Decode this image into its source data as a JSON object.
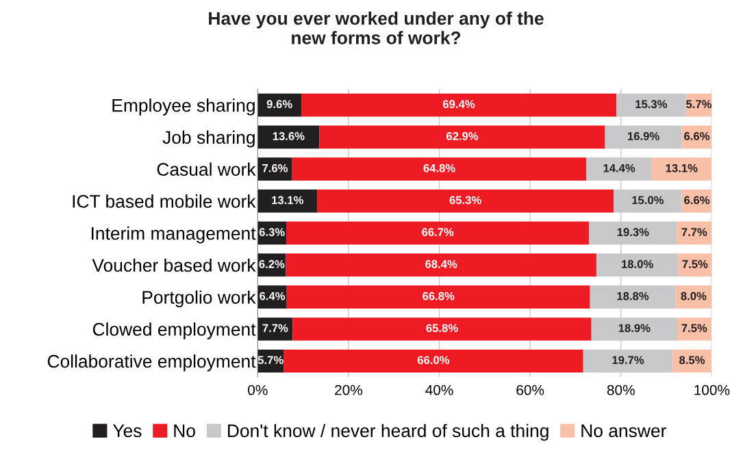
{
  "chart_data": {
    "type": "bar",
    "orientation": "horizontal",
    "stacked": true,
    "title": "Have you ever worked under any of the\nnew forms of work?",
    "categories": [
      "Employee sharing",
      "Job sharing",
      "Casual work",
      "ICT based mobile work",
      "Interim management",
      "Voucher based work",
      "Portgolio work",
      "Clowed employment",
      "Collaborative employment"
    ],
    "series": [
      {
        "name": "Yes",
        "color": "#231f20",
        "values": [
          9.6,
          13.6,
          7.6,
          13.1,
          6.3,
          6.2,
          6.4,
          7.7,
          5.7
        ],
        "value_labels": [
          "9.6%",
          "13.6%",
          "7.6%",
          "13.1%",
          "6.3%",
          "6.2%",
          "6.4%",
          "7.7%",
          "5.7%"
        ]
      },
      {
        "name": "No",
        "color": "#ed1c24",
        "values": [
          69.4,
          62.9,
          64.8,
          65.3,
          66.7,
          68.4,
          66.8,
          65.8,
          66.0
        ],
        "value_labels": [
          "69.4%",
          "62.9%",
          "64.8%",
          "65.3%",
          "66.7%",
          "68.4%",
          "66.8%",
          "65.8%",
          "66.0%"
        ]
      },
      {
        "name": "Don't know / never heard of such a thing",
        "color": "#c8c8ca",
        "values": [
          15.3,
          16.9,
          14.4,
          15.0,
          19.3,
          18.0,
          18.8,
          18.9,
          19.7
        ],
        "value_labels": [
          "15.3%",
          "16.9%",
          "14.4%",
          "15.0%",
          "19.3%",
          "18.0%",
          "18.8%",
          "18.9%",
          "19.7%"
        ]
      },
      {
        "name": "No answer",
        "color": "#f9c0a8",
        "values": [
          5.7,
          6.6,
          13.1,
          6.6,
          7.7,
          7.5,
          8.0,
          7.5,
          8.5
        ],
        "value_labels": [
          "5.7%",
          "6.6%",
          "13.1%",
          "6.6%",
          "7.7%",
          "7.5%",
          "8.0%",
          "7.5%",
          "8.5%"
        ]
      }
    ],
    "xlim": [
      0,
      100
    ],
    "xticks": [
      {
        "value": 0,
        "label": "0%"
      },
      {
        "value": 20,
        "label": "20%"
      },
      {
        "value": 40,
        "label": "40%"
      },
      {
        "value": 60,
        "label": "60%"
      },
      {
        "value": 80,
        "label": "80%"
      },
      {
        "value": 100,
        "label": "100%"
      }
    ],
    "grid": "x",
    "legend": "bottom"
  }
}
